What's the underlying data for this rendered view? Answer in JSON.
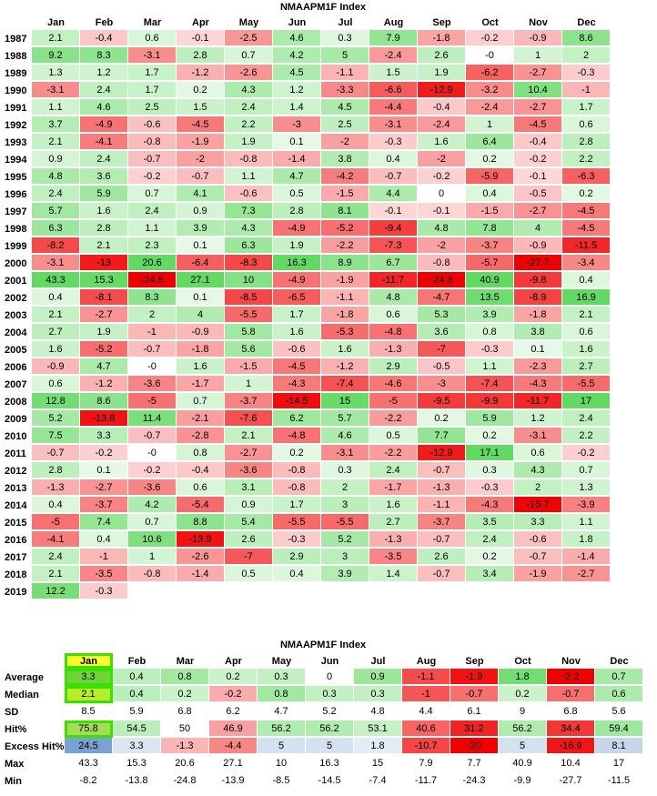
{
  "heatmap": {
    "title": "NMAAPM1F Index",
    "months": [
      "Jan",
      "Feb",
      "Mar",
      "Apr",
      "May",
      "Jun",
      "Jul",
      "Aug",
      "Sep",
      "Oct",
      "Nov",
      "Dec"
    ],
    "rows": [
      {
        "year": "1987",
        "values": [
          "2.1",
          "-0.4",
          "0.6",
          "-0.1",
          "-2.5",
          "4.6",
          "0.3",
          "7.9",
          "-1.8",
          "-0.2",
          "-0.9",
          "8.6"
        ]
      },
      {
        "year": "1988",
        "values": [
          "9.2",
          "8.3",
          "-3.1",
          "2.8",
          "0.7",
          "4.2",
          "5",
          "-2.4",
          "2.6",
          "-0",
          "1",
          "2"
        ]
      },
      {
        "year": "1989",
        "values": [
          "1.3",
          "1.2",
          "1.7",
          "-1.2",
          "-2.6",
          "4.5",
          "-1.1",
          "1.5",
          "1.9",
          "-6.2",
          "-2.7",
          "-0.3"
        ]
      },
      {
        "year": "1990",
        "values": [
          "-3.1",
          "2.4",
          "1.7",
          "0.2",
          "4.3",
          "1.2",
          "-3.3",
          "-6.6",
          "-12.9",
          "-3.2",
          "10.4",
          "-1"
        ]
      },
      {
        "year": "1991",
        "values": [
          "1.1",
          "4.6",
          "2.5",
          "1.5",
          "2.4",
          "1.4",
          "4.5",
          "-4.4",
          "-0.4",
          "-2.4",
          "-2.7",
          "1.7"
        ]
      },
      {
        "year": "1992",
        "values": [
          "3.7",
          "-4.9",
          "-0.6",
          "-4.5",
          "2.2",
          "-3",
          "2.5",
          "-3.1",
          "-2.4",
          "1",
          "-4.5",
          "0.6"
        ]
      },
      {
        "year": "1993",
        "values": [
          "2.1",
          "-4.1",
          "-0.8",
          "-1.9",
          "1.9",
          "0.1",
          "-2",
          "-0.3",
          "1.6",
          "6.4",
          "-0.4",
          "2.8"
        ]
      },
      {
        "year": "1994",
        "values": [
          "0.9",
          "2.4",
          "-0.7",
          "-2",
          "-0.8",
          "-1.4",
          "3.8",
          "0.4",
          "-2",
          "0.2",
          "-0.2",
          "2.2"
        ]
      },
      {
        "year": "1995",
        "values": [
          "4.8",
          "3.6",
          "-0.2",
          "-0.7",
          "1.1",
          "4.7",
          "-4.2",
          "-0.7",
          "-0.2",
          "-5.9",
          "-0.1",
          "-6.3"
        ]
      },
      {
        "year": "1996",
        "values": [
          "2.4",
          "5.9",
          "0.7",
          "4.1",
          "-0.6",
          "0.5",
          "-1.5",
          "4.4",
          "0",
          "0.4",
          "-0.5",
          "0.2"
        ]
      },
      {
        "year": "1997",
        "values": [
          "5.7",
          "1.6",
          "2.4",
          "0.9",
          "7.3",
          "2.8",
          "8.1",
          "-0.1",
          "-0.1",
          "-1.5",
          "-2.7",
          "-4.5"
        ]
      },
      {
        "year": "1998",
        "values": [
          "6.3",
          "2.8",
          "1.1",
          "3.9",
          "4.3",
          "-4.9",
          "-5.2",
          "-9.4",
          "4.8",
          "7.8",
          "4",
          "-4.5"
        ]
      },
      {
        "year": "1999",
        "values": [
          "-8.2",
          "2.1",
          "2.3",
          "0.1",
          "6.3",
          "1.9",
          "-2.2",
          "-7.3",
          "-2",
          "-3.7",
          "-0.9",
          "-11.5"
        ]
      },
      {
        "year": "2000",
        "values": [
          "-3.1",
          "-13",
          "20.6",
          "-6.4",
          "-8.3",
          "16.3",
          "8.9",
          "6.7",
          "-0.8",
          "-5.7",
          "-27.7",
          "-3.4"
        ]
      },
      {
        "year": "2001",
        "values": [
          "43.3",
          "15.3",
          "-24.8",
          "27.1",
          "10",
          "-4.9",
          "-1.9",
          "-11.7",
          "-24.3",
          "40.9",
          "-9.8",
          "0.4"
        ]
      },
      {
        "year": "2002",
        "values": [
          "0.4",
          "-8.1",
          "8.3",
          "0.1",
          "-8.5",
          "-6.5",
          "-1.1",
          "4.8",
          "-4.7",
          "13.5",
          "-8.9",
          "16.9"
        ]
      },
      {
        "year": "2003",
        "values": [
          "2.1",
          "-2.7",
          "2",
          "4",
          "-5.5",
          "1.7",
          "-1.8",
          "0.6",
          "5.3",
          "3.9",
          "-1.8",
          "2.1"
        ]
      },
      {
        "year": "2004",
        "values": [
          "2.7",
          "1.9",
          "-1",
          "-0.9",
          "5.8",
          "1.6",
          "-5.3",
          "-4.8",
          "3.6",
          "0.8",
          "3.8",
          "0.6"
        ]
      },
      {
        "year": "2005",
        "values": [
          "1.6",
          "-5.2",
          "-0.7",
          "-1.8",
          "5.6",
          "-0.6",
          "1.6",
          "-1.3",
          "-7",
          "-0.3",
          "0.1",
          "1.6"
        ]
      },
      {
        "year": "2006",
        "values": [
          "-0.9",
          "4.7",
          "-0",
          "1.6",
          "-1.5",
          "-4.5",
          "-1.2",
          "2.9",
          "-0.5",
          "1.1",
          "-2.3",
          "2.7"
        ]
      },
      {
        "year": "2007",
        "values": [
          "0.6",
          "-1.2",
          "-3.6",
          "-1.7",
          "1",
          "-4.3",
          "-7.4",
          "-4.6",
          "-3",
          "-7.4",
          "-4.3",
          "-5.5"
        ]
      },
      {
        "year": "2008",
        "values": [
          "12.8",
          "8.6",
          "-5",
          "0.7",
          "-3.7",
          "-14.5",
          "15",
          "-5",
          "-9.5",
          "-9.9",
          "-11.7",
          "17"
        ]
      },
      {
        "year": "2009",
        "values": [
          "5.2",
          "-13.8",
          "11.4",
          "-2.1",
          "-7.6",
          "6.2",
          "5.7",
          "-2.2",
          "0.2",
          "5.9",
          "1.2",
          "2.4"
        ]
      },
      {
        "year": "2010",
        "values": [
          "7.5",
          "3.3",
          "-0.7",
          "-2.8",
          "2.1",
          "-4.8",
          "4.6",
          "0.5",
          "7.7",
          "0.2",
          "-3.1",
          "2.2"
        ]
      },
      {
        "year": "2011",
        "values": [
          "-0.7",
          "-0.2",
          "-0",
          "0.8",
          "-2.7",
          "0.2",
          "-3.1",
          "-2.2",
          "-12.9",
          "17.1",
          "0.6",
          "-0.2"
        ]
      },
      {
        "year": "2012",
        "values": [
          "2.8",
          "0.1",
          "-0.2",
          "-0.4",
          "-3.6",
          "-0.8",
          "0.3",
          "2.4",
          "-0.7",
          "0.3",
          "4.3",
          "0.7"
        ]
      },
      {
        "year": "2013",
        "values": [
          "-1.3",
          "-2.7",
          "-3.6",
          "0.6",
          "3.1",
          "-0.8",
          "2",
          "-1.7",
          "-1.3",
          "-0.3",
          "2",
          "1.3"
        ]
      },
      {
        "year": "2014",
        "values": [
          "0.4",
          "-3.7",
          "4.2",
          "-5.4",
          "0.9",
          "1.7",
          "3",
          "1.6",
          "-1.1",
          "-4.3",
          "-15.7",
          "-3.9"
        ]
      },
      {
        "year": "2015",
        "values": [
          "-5",
          "7.4",
          "0.7",
          "8.8",
          "5.4",
          "-5.5",
          "-5.5",
          "2.7",
          "-3.7",
          "3.5",
          "3.3",
          "1.1"
        ]
      },
      {
        "year": "2016",
        "values": [
          "-4.1",
          "0.4",
          "10.6",
          "-13.9",
          "2.6",
          "-0.3",
          "5.2",
          "-1.3",
          "-0.7",
          "2.4",
          "-0.6",
          "1.8"
        ]
      },
      {
        "year": "2017",
        "values": [
          "2.4",
          "-1",
          "1",
          "-2.6",
          "-7",
          "2.9",
          "3",
          "-3.5",
          "2.6",
          "0.2",
          "-0.7",
          "-1.4"
        ]
      },
      {
        "year": "2018",
        "values": [
          "2.1",
          "-3.5",
          "-0.8",
          "-1.4",
          "0.5",
          "0.4",
          "3.9",
          "1.4",
          "-0.7",
          "3.4",
          "-1.9",
          "-2.7"
        ]
      },
      {
        "year": "2019",
        "values": [
          "12.2",
          "-0.3",
          "",
          "",
          "",
          "",
          "",
          "",
          "",
          "",
          "",
          ""
        ]
      }
    ]
  },
  "stats": {
    "title": "NMAAPM1F Index",
    "highlight_month": "Jan",
    "rows": [
      {
        "label": "Average",
        "values": [
          "3.3",
          "0.4",
          "0.8",
          "0.2",
          "0.3",
          "0",
          "0.9",
          "-1.1",
          "-1.9",
          "1.8",
          "-2.2",
          "0.7"
        ],
        "colored": true
      },
      {
        "label": "Median",
        "values": [
          "2.1",
          "0.4",
          "0.2",
          "-0.2",
          "0.8",
          "0.3",
          "0.3",
          "-1",
          "-0.7",
          "0.2",
          "-0.7",
          "0.6"
        ],
        "colored": true
      },
      {
        "label": "SD",
        "values": [
          "8.5",
          "5.9",
          "6.8",
          "6.2",
          "4.7",
          "5.2",
          "4.8",
          "4.4",
          "6.1",
          "9",
          "6.8",
          "5.6"
        ],
        "colored": false
      },
      {
        "label": "Hit%",
        "values": [
          "75.8",
          "54.5",
          "50",
          "46.9",
          "56.2",
          "56.2",
          "53.1",
          "40.6",
          "31.2",
          "56.2",
          "34.4",
          "59.4"
        ],
        "colored": true
      },
      {
        "label": "Excess Hit%",
        "values": [
          "24.5",
          "3.3",
          "-1.3",
          "-4.4",
          "5",
          "5",
          "1.8",
          "-10.7",
          "-20",
          "5",
          "-16.9",
          "8.1"
        ],
        "colored": true
      },
      {
        "label": "Max",
        "values": [
          "43.3",
          "15.3",
          "20.6",
          "27.1",
          "10",
          "16.3",
          "15",
          "7.9",
          "7.7",
          "40.9",
          "10.4",
          "17"
        ],
        "colored": false
      },
      {
        "label": "Min",
        "values": [
          "-8.2",
          "-13.8",
          "-24.8",
          "-13.9",
          "-8.5",
          "-14.5",
          "-7.4",
          "-11.7",
          "-24.3",
          "-9.9",
          "-27.7",
          "-11.5"
        ],
        "colored": false
      }
    ]
  },
  "colors": {
    "positive": "#62d962",
    "negative": "#f00000",
    "excess_positive": "#7aa1d0",
    "highlight_fill": "#fbff2a",
    "highlight_border": "#39e000"
  },
  "chart_data": {
    "type": "heatmap",
    "title": "NMAAPM1F Index",
    "x": [
      "Jan",
      "Feb",
      "Mar",
      "Apr",
      "May",
      "Jun",
      "Jul",
      "Aug",
      "Sep",
      "Oct",
      "Nov",
      "Dec"
    ],
    "y": [
      "1987",
      "1988",
      "1989",
      "1990",
      "1991",
      "1992",
      "1993",
      "1994",
      "1995",
      "1996",
      "1997",
      "1998",
      "1999",
      "2000",
      "2001",
      "2002",
      "2003",
      "2004",
      "2005",
      "2006",
      "2007",
      "2008",
      "2009",
      "2010",
      "2011",
      "2012",
      "2013",
      "2014",
      "2015",
      "2016",
      "2017",
      "2018",
      "2019"
    ],
    "color_scale": "red (negative) to green (positive)"
  }
}
